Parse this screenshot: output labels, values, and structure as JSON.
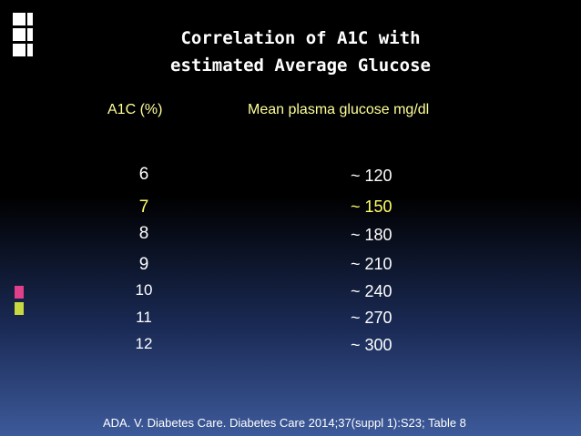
{
  "slide": {
    "title": [
      "Correlation of A1C with",
      "estimated Average Glucose"
    ],
    "headers": [
      "A1C (%)",
      "Mean plasma glucose mg/dl"
    ],
    "rows": [
      [
        6,
        "~ 120"
      ],
      [
        7,
        "~ 150"
      ],
      [
        8,
        "~ 180"
      ],
      [
        9,
        "~ 210"
      ],
      [
        10,
        "~ 240"
      ],
      [
        11,
        "~ 270"
      ],
      [
        12,
        "~ 300"
      ]
    ],
    "citation": "ADA. V. Diabetes Care. Diabetes Care 2014;37(suppl 1):S23; Table 8"
  }
}
